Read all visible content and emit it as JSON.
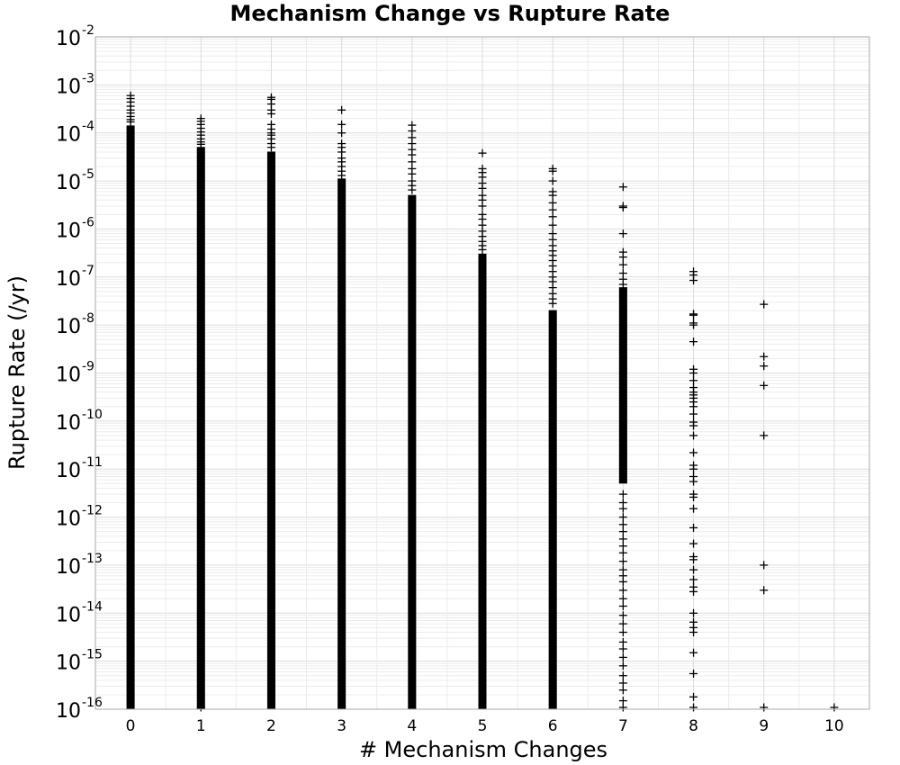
{
  "chart_data": {
    "type": "scatter",
    "title": "Mechanism Change vs Rupture Rate",
    "xlabel": "# Mechanism Changes",
    "ylabel": "Rupture Rate (/yr)",
    "x_ticks": [
      "0",
      "1",
      "2",
      "3",
      "4",
      "5",
      "6",
      "7",
      "8",
      "9",
      "10"
    ],
    "xlim": [
      -0.5,
      10.5
    ],
    "y_scale": "log",
    "ylim": [
      1e-16,
      0.01
    ],
    "y_tick_base": "10",
    "y_tick_exponents": [
      "-16",
      "-15",
      "-14",
      "-13",
      "-12",
      "-11",
      "-10",
      "-9",
      "-8",
      "-7",
      "-6",
      "-5",
      "-4",
      "-3",
      "-2"
    ],
    "grid": true,
    "marker": "+",
    "marker_color": "#000000",
    "columns": [
      {
        "x": 0,
        "dense_min": 1e-16,
        "dense_max": 0.00014,
        "points": [
          0.0006,
          0.00052,
          0.00044,
          0.00036,
          0.0003,
          0.00026,
          0.00022,
          0.00019,
          0.00017
        ]
      },
      {
        "x": 1,
        "dense_min": 1e-16,
        "dense_max": 5e-05,
        "points": [
          0.0002,
          0.000175,
          0.00015,
          0.000125,
          0.000105,
          9e-05,
          7.5e-05,
          6.5e-05,
          5.8e-05,
          1e-16
        ]
      },
      {
        "x": 2,
        "dense_min": 1e-16,
        "dense_max": 4e-05,
        "points": [
          0.00055,
          0.0005,
          0.0004,
          0.0003,
          0.00025,
          0.00015,
          0.00012,
          0.0001,
          9e-05,
          7.5e-05,
          6e-05,
          5e-05
        ]
      },
      {
        "x": 3,
        "dense_min": 1e-16,
        "dense_max": 1.1e-05,
        "points": [
          0.0003,
          0.00015,
          0.0001,
          6e-05,
          5e-05,
          4e-05,
          3e-05,
          2.5e-05,
          2e-05,
          1.6e-05,
          1.3e-05
        ]
      },
      {
        "x": 4,
        "dense_min": 1e-16,
        "dense_max": 5e-06,
        "points": [
          0.000145,
          0.00011,
          8e-05,
          6e-05,
          4.5e-05,
          3.5e-05,
          2.5e-05,
          1.8e-05,
          1.4e-05,
          1e-05,
          8e-06,
          6.5e-06
        ]
      },
      {
        "x": 5,
        "dense_min": 1e-16,
        "dense_max": 3e-07,
        "points": [
          3.8e-05,
          1.8e-05,
          1.5e-05,
          1.2e-05,
          9e-06,
          7e-06,
          5e-06,
          4e-06,
          3e-06,
          2e-06,
          1.6e-06,
          1.2e-06,
          9e-07,
          7e-07,
          5.5e-07,
          4.5e-07,
          3.7e-07
        ]
      },
      {
        "x": 6,
        "dense_min": 1e-16,
        "dense_max": 2e-08,
        "points": [
          1.8e-05,
          1.6e-05,
          1e-05,
          6e-06,
          5e-06,
          3.5e-06,
          2.5e-06,
          1.8e-06,
          1.2e-06,
          8e-07,
          6e-07,
          4.5e-07,
          3.5e-07,
          2.8e-07,
          2.2e-07,
          1.7e-07,
          1.3e-07,
          1e-07,
          8e-08,
          6e-08,
          4.5e-08,
          3.5e-08,
          2.8e-08
        ]
      },
      {
        "x": 7,
        "dense_min": 5e-12,
        "dense_max": 6e-08,
        "points": [
          7.5e-06,
          3e-06,
          2.8e-06,
          8e-07,
          3.3e-07,
          2.6e-07,
          1.8e-07,
          1.2e-07,
          9e-08,
          7e-08,
          3e-12,
          2e-12,
          1.5e-12,
          1e-12,
          7e-13,
          5e-13,
          3.5e-13,
          2.5e-13,
          1.8e-13,
          1.2e-13,
          8e-14,
          6e-14,
          4.5e-14,
          3e-14,
          2e-14,
          1.4e-14,
          9e-15,
          6e-15,
          4e-15,
          2.5e-15,
          1.8e-15,
          1.2e-15,
          8e-16,
          5e-16,
          3.5e-16,
          2.5e-16,
          1.5e-16,
          1e-16
        ]
      },
      {
        "x": 8,
        "dense_min": 3e-10,
        "dense_max": 3e-10,
        "points": [
          1.3e-07,
          1.1e-07,
          8.5e-08,
          1.7e-08,
          1.6e-08,
          1.1e-08,
          1e-08,
          4.5e-09,
          1.2e-09,
          1e-09,
          7e-10,
          5e-10,
          4e-10,
          3.5e-10,
          3e-10,
          2.5e-10,
          2e-10,
          1.4e-10,
          9.5e-11,
          8e-11,
          5e-11,
          2.2e-11,
          1.2e-11,
          1e-11,
          7e-12,
          5.5e-12,
          3e-12,
          2.6e-12,
          1.5e-12,
          6e-13,
          2.8e-13,
          1.5e-13,
          1.3e-13,
          8e-14,
          5e-14,
          3.5e-14,
          2.8e-14,
          1e-14,
          6.5e-15,
          5e-15,
          4e-15,
          1.5e-15,
          5.5e-16,
          1.8e-16,
          1e-16
        ]
      },
      {
        "x": 9,
        "dense_min": 1e-16,
        "dense_max": 1e-16,
        "points": [
          2.7e-08,
          2.2e-09,
          1.4e-09,
          5.5e-10,
          5e-11,
          1e-13,
          3e-14,
          1e-16
        ]
      },
      {
        "x": 10,
        "dense_min": 1e-16,
        "dense_max": 1e-16,
        "points": [
          1e-16
        ]
      }
    ]
  }
}
